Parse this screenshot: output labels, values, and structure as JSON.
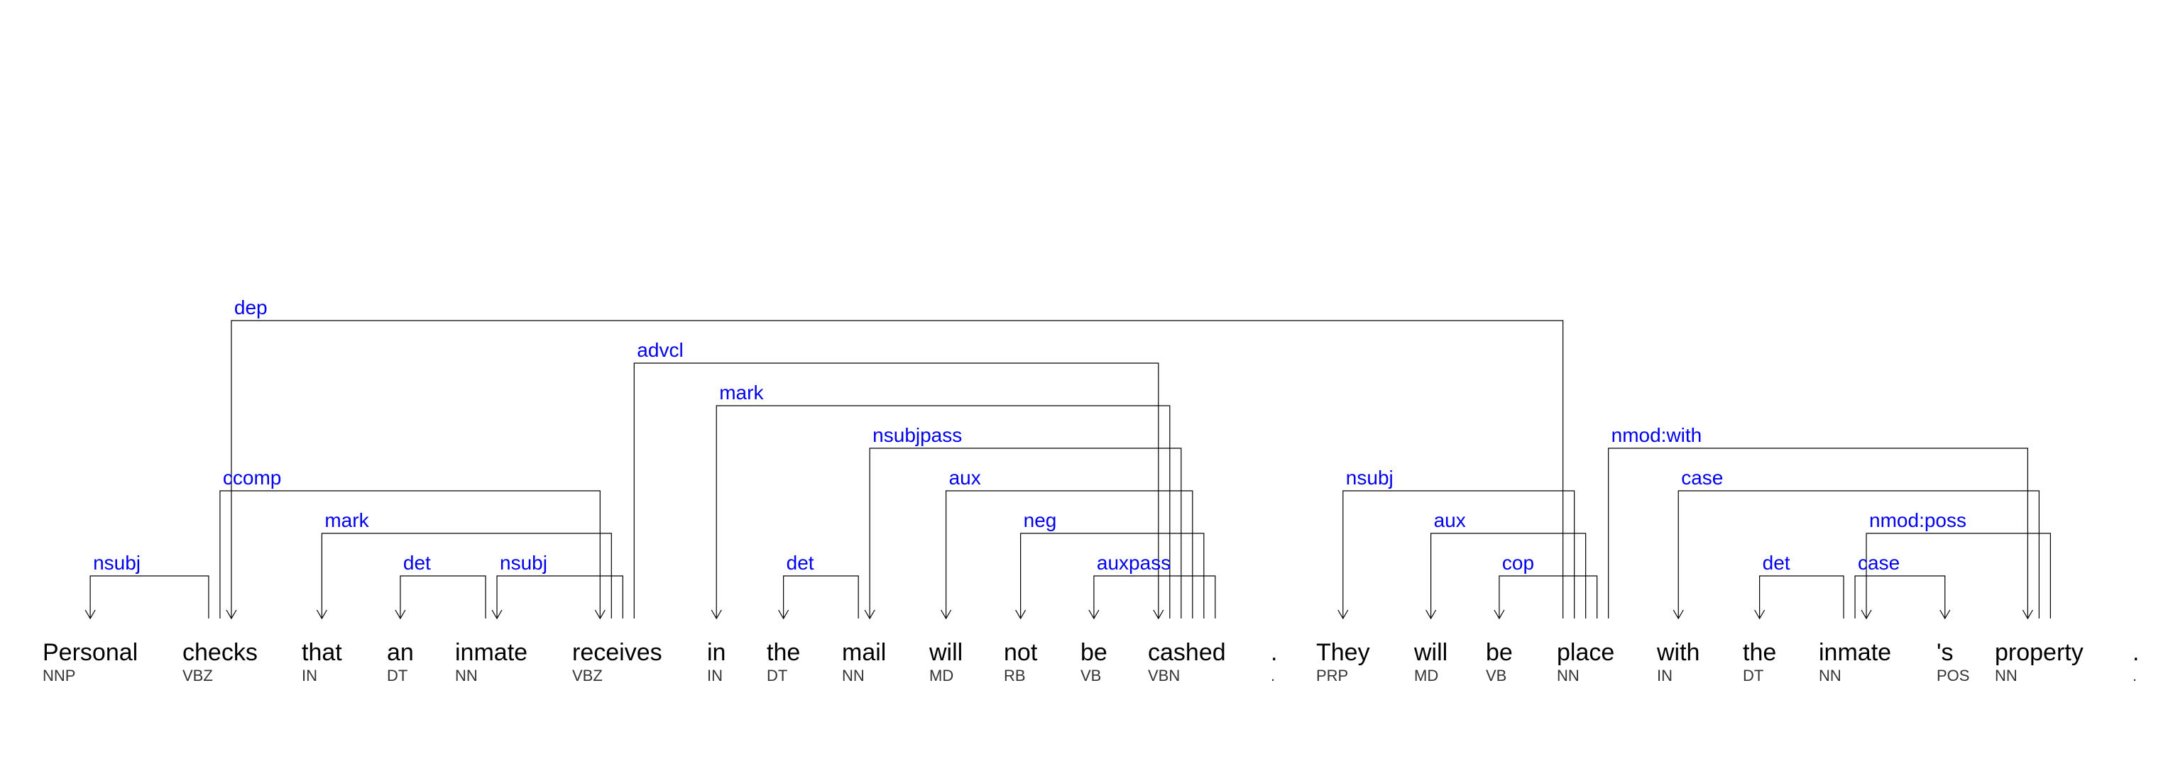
{
  "colors": {
    "label": "#0000ee",
    "line": "#000000",
    "word": "#000000",
    "tag": "#333333"
  },
  "tokens": [
    {
      "word": "Personal",
      "tag": "NNP"
    },
    {
      "word": "checks",
      "tag": "VBZ"
    },
    {
      "word": "that",
      "tag": "IN"
    },
    {
      "word": "an",
      "tag": "DT"
    },
    {
      "word": "inmate",
      "tag": "NN"
    },
    {
      "word": "receives",
      "tag": "VBZ"
    },
    {
      "word": "in",
      "tag": "IN"
    },
    {
      "word": "the",
      "tag": "DT"
    },
    {
      "word": "mail",
      "tag": "NN"
    },
    {
      "word": "will",
      "tag": "MD"
    },
    {
      "word": "not",
      "tag": "RB"
    },
    {
      "word": "be",
      "tag": "VB"
    },
    {
      "word": "cashed",
      "tag": "VBN"
    },
    {
      "word": ".",
      "tag": "."
    },
    {
      "word": "They",
      "tag": "PRP"
    },
    {
      "word": "will",
      "tag": "MD"
    },
    {
      "word": "be",
      "tag": "VB"
    },
    {
      "word": "place",
      "tag": "NN"
    },
    {
      "word": "with",
      "tag": "IN"
    },
    {
      "word": "the",
      "tag": "DT"
    },
    {
      "word": "inmate",
      "tag": "NN"
    },
    {
      "word": "'s",
      "tag": "POS"
    },
    {
      "word": "property",
      "tag": "NN"
    },
    {
      "word": ".",
      "tag": "."
    }
  ],
  "relations": [
    {
      "label": "nsubj",
      "head": 1,
      "dep": 0
    },
    {
      "label": "ccomp",
      "head": 1,
      "dep": 5
    },
    {
      "label": "det",
      "head": 4,
      "dep": 3
    },
    {
      "label": "mark",
      "head": 5,
      "dep": 2
    },
    {
      "label": "nsubj",
      "head": 5,
      "dep": 4
    },
    {
      "label": "advcl",
      "head": 5,
      "dep": 12
    },
    {
      "label": "det",
      "head": 8,
      "dep": 7
    },
    {
      "label": "aux",
      "head": 12,
      "dep": 9
    },
    {
      "label": "mark",
      "head": 12,
      "dep": 6
    },
    {
      "label": "nsubjpass",
      "head": 12,
      "dep": 8
    },
    {
      "label": "neg",
      "head": 12,
      "dep": 10
    },
    {
      "label": "auxpass",
      "head": 12,
      "dep": 11
    },
    {
      "label": "dep",
      "head": 17,
      "dep": 1
    },
    {
      "label": "nsubj",
      "head": 17,
      "dep": 14
    },
    {
      "label": "aux",
      "head": 17,
      "dep": 15
    },
    {
      "label": "cop",
      "head": 17,
      "dep": 16
    },
    {
      "label": "nmod:with",
      "head": 17,
      "dep": 22
    },
    {
      "label": "det",
      "head": 20,
      "dep": 19
    },
    {
      "label": "case",
      "head": 20,
      "dep": 21
    },
    {
      "label": "case",
      "head": 22,
      "dep": 18
    },
    {
      "label": "nmod:poss",
      "head": 22,
      "dep": 20
    }
  ]
}
